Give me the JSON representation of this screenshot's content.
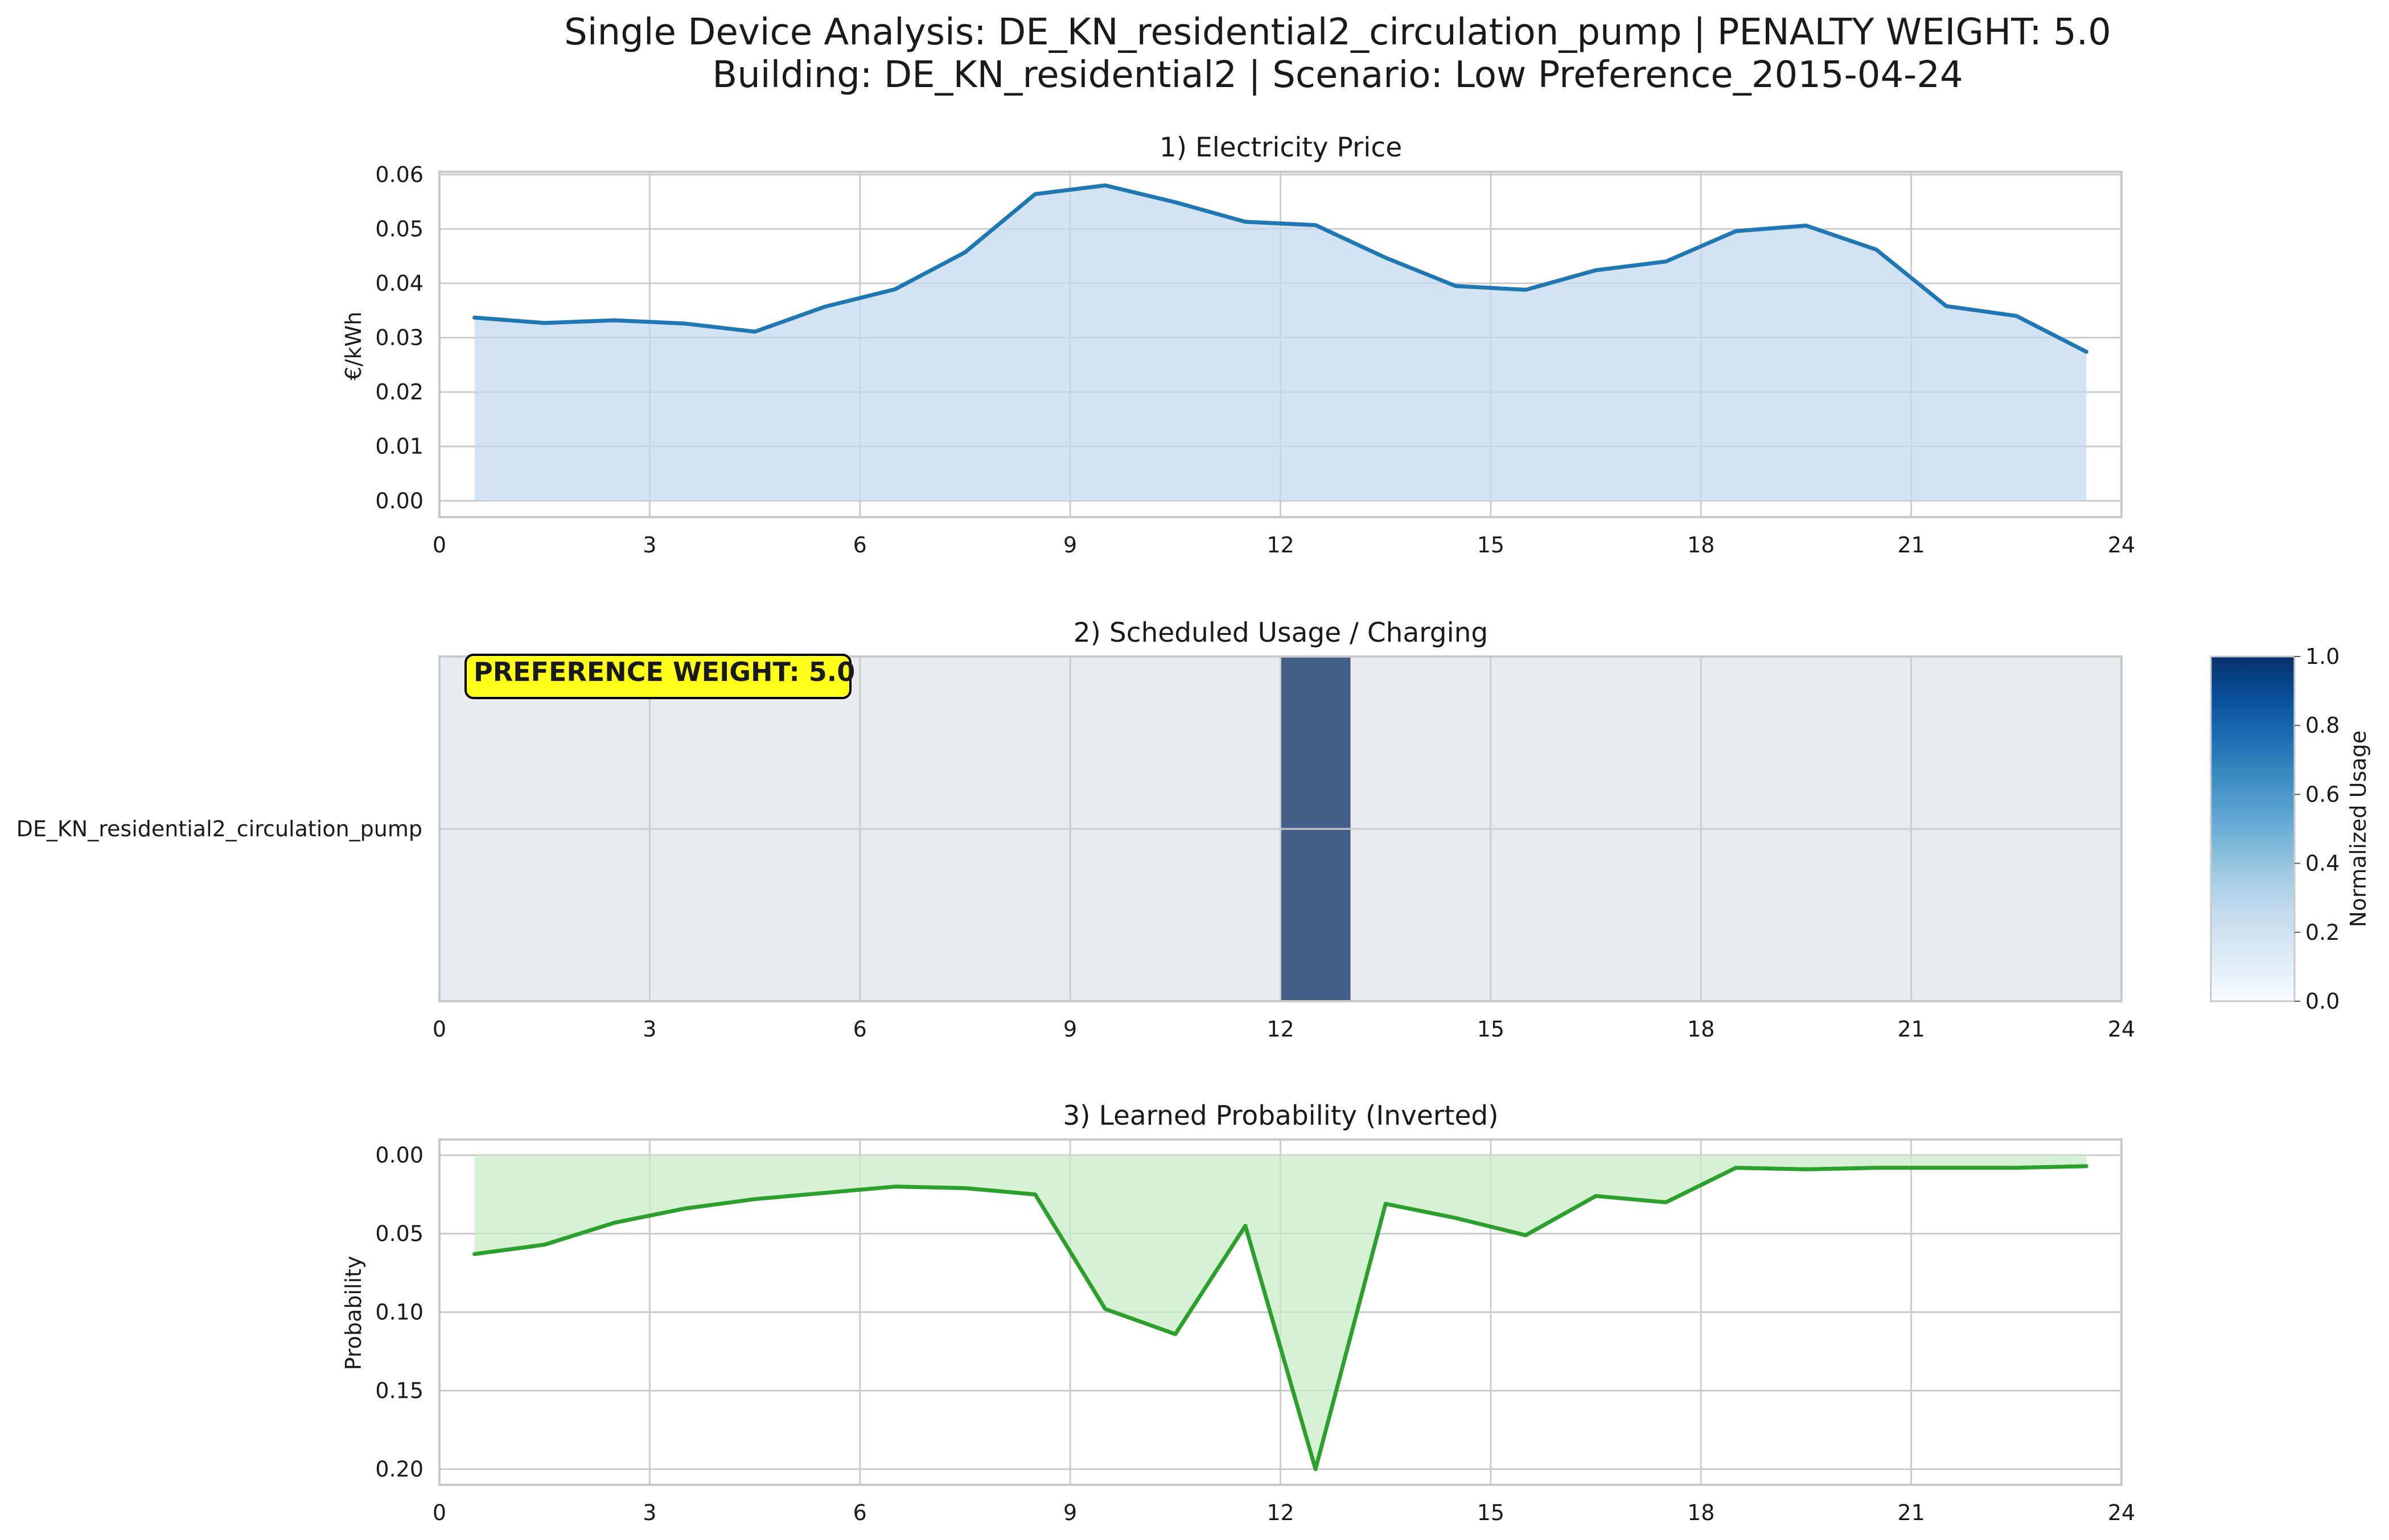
{
  "figure": {
    "title_line1": "Single Device Analysis: DE_KN_residential2_circulation_pump | PENALTY WEIGHT: 5.0",
    "title_line2": "Building: DE_KN_residential2 | Scenario: Low Preference_2015-04-24"
  },
  "chart_data": [
    {
      "type": "area",
      "title": "1) Electricity Price",
      "xlabel": "",
      "ylabel": "€/kWh",
      "xlim": [
        0,
        24
      ],
      "ylim": [
        -0.003,
        0.0605
      ],
      "xticks": [
        0,
        3,
        6,
        9,
        12,
        15,
        18,
        21,
        24
      ],
      "yticks": [
        0.0,
        0.01,
        0.02,
        0.03,
        0.04,
        0.05,
        0.06
      ],
      "ytick_labels": [
        "0.00",
        "0.01",
        "0.02",
        "0.03",
        "0.04",
        "0.05",
        "0.06"
      ],
      "grid": true,
      "line_color": "#1f77b4",
      "fill_color": "#c6d9ef",
      "x": [
        0.5,
        1.5,
        2.5,
        3.5,
        4.5,
        5.5,
        6.5,
        7.5,
        8.5,
        9.5,
        10.5,
        11.5,
        12.5,
        13.5,
        14.5,
        15.5,
        16.5,
        17.5,
        18.5,
        19.5,
        20.5,
        21.5,
        22.5,
        23.5
      ],
      "y": [
        0.0337,
        0.0327,
        0.0332,
        0.0326,
        0.0311,
        0.0357,
        0.0389,
        0.0457,
        0.0564,
        0.058,
        0.0549,
        0.0513,
        0.0507,
        0.0447,
        0.0395,
        0.0388,
        0.0424,
        0.044,
        0.0496,
        0.0506,
        0.0462,
        0.0358,
        0.034,
        0.0274
      ]
    },
    {
      "type": "heatmap",
      "title": "2) Scheduled Usage / Charging",
      "row_labels": [
        "DE_KN_residential2_circulation_pump"
      ],
      "xlim": [
        0,
        24
      ],
      "xticks": [
        0,
        3,
        6,
        9,
        12,
        15,
        18,
        21,
        24
      ],
      "grid": true,
      "colormap": "Blues",
      "colorbar_label": "Normalized Usage",
      "colorbar_range": [
        0,
        1
      ],
      "colorbar_ticks": [
        "0.0",
        "0.2",
        "0.4",
        "0.6",
        "0.8",
        "1.0"
      ],
      "hours": [
        0,
        1,
        2,
        3,
        4,
        5,
        6,
        7,
        8,
        9,
        10,
        11,
        12,
        13,
        14,
        15,
        16,
        17,
        18,
        19,
        20,
        21,
        22,
        23
      ],
      "values": [
        0,
        0,
        0,
        0,
        0,
        0,
        0,
        0,
        0,
        0,
        0,
        0,
        1,
        0,
        0,
        0,
        0,
        0,
        0,
        0,
        0,
        0,
        0,
        0
      ],
      "annotation": "PREFERENCE WEIGHT: 5.0",
      "annotation_color": "#ffff1a",
      "background_color": "#eaebef",
      "active_color": "#445f87"
    },
    {
      "type": "area",
      "title": "3) Learned Probability (Inverted)",
      "xlabel": "",
      "ylabel": "Probability",
      "xlim": [
        0,
        24
      ],
      "ylim": [
        0.21,
        -0.01
      ],
      "y_inverted": true,
      "xticks": [
        0,
        3,
        6,
        9,
        12,
        15,
        18,
        21,
        24
      ],
      "yticks": [
        0.0,
        0.05,
        0.1,
        0.15,
        0.2
      ],
      "ytick_labels": [
        "0.00",
        "0.05",
        "0.10",
        "0.15",
        "0.20"
      ],
      "grid": true,
      "line_color": "#2ca02c",
      "fill_color": "#c8ecc4",
      "x": [
        0.5,
        1.5,
        2.5,
        3.5,
        4.5,
        5.5,
        6.5,
        7.5,
        8.5,
        9.5,
        10.5,
        11.5,
        12.5,
        13.5,
        14.5,
        15.5,
        16.5,
        17.5,
        18.5,
        19.5,
        20.5,
        21.5,
        22.5,
        23.5
      ],
      "y": [
        0.063,
        0.057,
        0.043,
        0.034,
        0.028,
        0.024,
        0.02,
        0.021,
        0.025,
        0.098,
        0.114,
        0.045,
        0.2,
        0.031,
        0.04,
        0.051,
        0.026,
        0.03,
        0.008,
        0.009,
        0.008,
        0.008,
        0.008,
        0.007
      ]
    }
  ]
}
